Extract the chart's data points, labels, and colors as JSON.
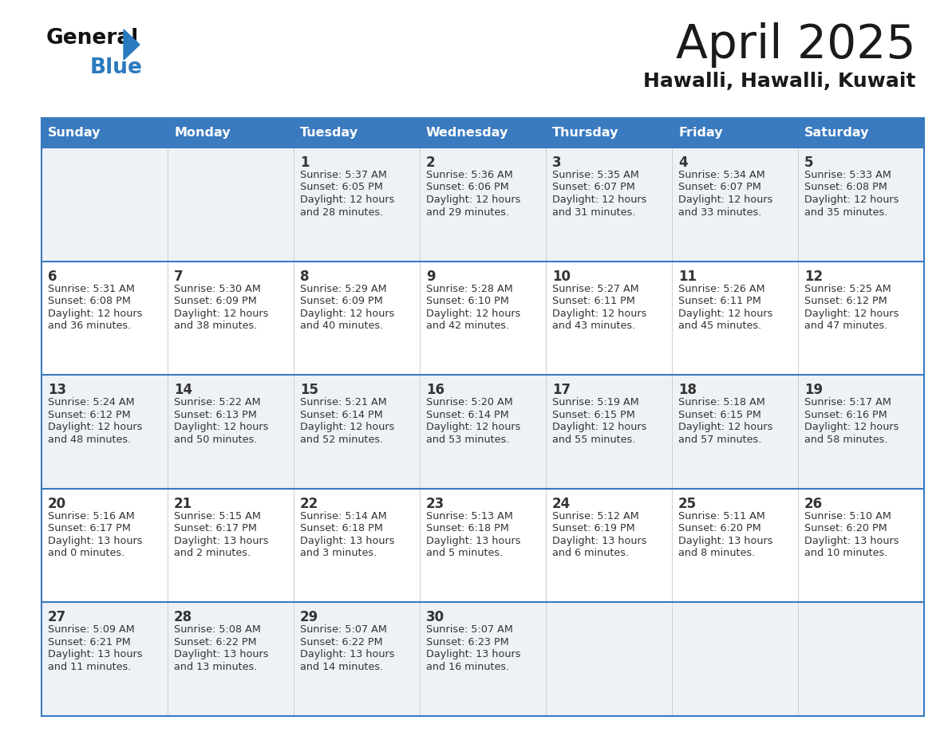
{
  "title": "April 2025",
  "subtitle": "Hawalli, Hawalli, Kuwait",
  "header_bg": "#3a7abf",
  "header_text": "#ffffff",
  "row_bg_odd": "#eef2f7",
  "row_bg_even": "#ffffff",
  "days_of_week": [
    "Sunday",
    "Monday",
    "Tuesday",
    "Wednesday",
    "Thursday",
    "Friday",
    "Saturday"
  ],
  "calendar": [
    [
      {
        "day": "",
        "sunrise": "",
        "sunset": "",
        "daylight_h": "",
        "daylight_m": ""
      },
      {
        "day": "",
        "sunrise": "",
        "sunset": "",
        "daylight_h": "",
        "daylight_m": ""
      },
      {
        "day": "1",
        "sunrise": "5:37 AM",
        "sunset": "6:05 PM",
        "daylight_h": "12",
        "daylight_m": "28"
      },
      {
        "day": "2",
        "sunrise": "5:36 AM",
        "sunset": "6:06 PM",
        "daylight_h": "12",
        "daylight_m": "29"
      },
      {
        "day": "3",
        "sunrise": "5:35 AM",
        "sunset": "6:07 PM",
        "daylight_h": "12",
        "daylight_m": "31"
      },
      {
        "day": "4",
        "sunrise": "5:34 AM",
        "sunset": "6:07 PM",
        "daylight_h": "12",
        "daylight_m": "33"
      },
      {
        "day": "5",
        "sunrise": "5:33 AM",
        "sunset": "6:08 PM",
        "daylight_h": "12",
        "daylight_m": "35"
      }
    ],
    [
      {
        "day": "6",
        "sunrise": "5:31 AM",
        "sunset": "6:08 PM",
        "daylight_h": "12",
        "daylight_m": "36"
      },
      {
        "day": "7",
        "sunrise": "5:30 AM",
        "sunset": "6:09 PM",
        "daylight_h": "12",
        "daylight_m": "38"
      },
      {
        "day": "8",
        "sunrise": "5:29 AM",
        "sunset": "6:09 PM",
        "daylight_h": "12",
        "daylight_m": "40"
      },
      {
        "day": "9",
        "sunrise": "5:28 AM",
        "sunset": "6:10 PM",
        "daylight_h": "12",
        "daylight_m": "42"
      },
      {
        "day": "10",
        "sunrise": "5:27 AM",
        "sunset": "6:11 PM",
        "daylight_h": "12",
        "daylight_m": "43"
      },
      {
        "day": "11",
        "sunrise": "5:26 AM",
        "sunset": "6:11 PM",
        "daylight_h": "12",
        "daylight_m": "45"
      },
      {
        "day": "12",
        "sunrise": "5:25 AM",
        "sunset": "6:12 PM",
        "daylight_h": "12",
        "daylight_m": "47"
      }
    ],
    [
      {
        "day": "13",
        "sunrise": "5:24 AM",
        "sunset": "6:12 PM",
        "daylight_h": "12",
        "daylight_m": "48"
      },
      {
        "day": "14",
        "sunrise": "5:22 AM",
        "sunset": "6:13 PM",
        "daylight_h": "12",
        "daylight_m": "50"
      },
      {
        "day": "15",
        "sunrise": "5:21 AM",
        "sunset": "6:14 PM",
        "daylight_h": "12",
        "daylight_m": "52"
      },
      {
        "day": "16",
        "sunrise": "5:20 AM",
        "sunset": "6:14 PM",
        "daylight_h": "12",
        "daylight_m": "53"
      },
      {
        "day": "17",
        "sunrise": "5:19 AM",
        "sunset": "6:15 PM",
        "daylight_h": "12",
        "daylight_m": "55"
      },
      {
        "day": "18",
        "sunrise": "5:18 AM",
        "sunset": "6:15 PM",
        "daylight_h": "12",
        "daylight_m": "57"
      },
      {
        "day": "19",
        "sunrise": "5:17 AM",
        "sunset": "6:16 PM",
        "daylight_h": "12",
        "daylight_m": "58"
      }
    ],
    [
      {
        "day": "20",
        "sunrise": "5:16 AM",
        "sunset": "6:17 PM",
        "daylight_h": "13",
        "daylight_m": "0"
      },
      {
        "day": "21",
        "sunrise": "5:15 AM",
        "sunset": "6:17 PM",
        "daylight_h": "13",
        "daylight_m": "2"
      },
      {
        "day": "22",
        "sunrise": "5:14 AM",
        "sunset": "6:18 PM",
        "daylight_h": "13",
        "daylight_m": "3"
      },
      {
        "day": "23",
        "sunrise": "5:13 AM",
        "sunset": "6:18 PM",
        "daylight_h": "13",
        "daylight_m": "5"
      },
      {
        "day": "24",
        "sunrise": "5:12 AM",
        "sunset": "6:19 PM",
        "daylight_h": "13",
        "daylight_m": "6"
      },
      {
        "day": "25",
        "sunrise": "5:11 AM",
        "sunset": "6:20 PM",
        "daylight_h": "13",
        "daylight_m": "8"
      },
      {
        "day": "26",
        "sunrise": "5:10 AM",
        "sunset": "6:20 PM",
        "daylight_h": "13",
        "daylight_m": "10"
      }
    ],
    [
      {
        "day": "27",
        "sunrise": "5:09 AM",
        "sunset": "6:21 PM",
        "daylight_h": "13",
        "daylight_m": "11"
      },
      {
        "day": "28",
        "sunrise": "5:08 AM",
        "sunset": "6:22 PM",
        "daylight_h": "13",
        "daylight_m": "13"
      },
      {
        "day": "29",
        "sunrise": "5:07 AM",
        "sunset": "6:22 PM",
        "daylight_h": "13",
        "daylight_m": "14"
      },
      {
        "day": "30",
        "sunrise": "5:07 AM",
        "sunset": "6:23 PM",
        "daylight_h": "13",
        "daylight_m": "16"
      },
      {
        "day": "",
        "sunrise": "",
        "sunset": "",
        "daylight_h": "",
        "daylight_m": ""
      },
      {
        "day": "",
        "sunrise": "",
        "sunset": "",
        "daylight_h": "",
        "daylight_m": ""
      },
      {
        "day": "",
        "sunrise": "",
        "sunset": "",
        "daylight_h": "",
        "daylight_m": ""
      }
    ]
  ],
  "text_color": "#1a1a1a",
  "cell_text_color": "#333333",
  "divider_color": "#3a7abf",
  "fig_bg": "#ffffff",
  "logo_general_color": "#111111",
  "logo_blue_color": "#2a7abf",
  "logo_triangle_color": "#2a7abf"
}
